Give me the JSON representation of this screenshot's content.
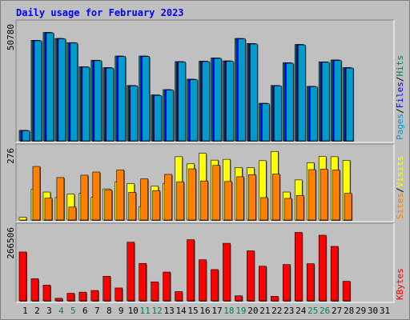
{
  "chart_data": {
    "type": "bar",
    "title": "Daily usage for February 2023",
    "colors": {
      "background": "#bfbfbf",
      "panel": "#c0c0c0",
      "pages": "#009cce",
      "files": "#0000ff",
      "hits": "#00805c",
      "visits": "#ffff00",
      "sites": "#ff8000",
      "kbytes": "#ff0000",
      "title": "#0000ff",
      "weekend_day": "#00805c"
    },
    "days": [
      "1",
      "2",
      "3",
      "4",
      "5",
      "6",
      "7",
      "8",
      "9",
      "10",
      "11",
      "12",
      "13",
      "14",
      "15",
      "16",
      "17",
      "18",
      "19",
      "20",
      "21",
      "22",
      "23",
      "24",
      "25",
      "26",
      "27",
      "28",
      "29",
      "30",
      "31"
    ],
    "weekend_days": [
      "4",
      "5",
      "11",
      "12",
      "18",
      "19",
      "25",
      "26"
    ],
    "panels": [
      {
        "id": "hits-files-pages",
        "max_label": "50780",
        "ylim": [
          0,
          50780
        ],
        "legend": [
          {
            "text": "Pages",
            "color": "#009cce"
          },
          {
            "text": "/",
            "color": "#000000"
          },
          {
            "text": "Files",
            "color": "#0000ff"
          },
          {
            "text": "/",
            "color": "#000000"
          },
          {
            "text": "Hits",
            "color": "#00805c"
          }
        ],
        "series": [
          {
            "name": "Hits",
            "color": "#00805c",
            "values": [
              4500,
              43400,
              46800,
              44200,
              42400,
              32000,
              34800,
              31600,
              36600,
              23900,
              36600,
              19800,
              22100,
              34200,
              26600,
              34400,
              35800,
              34500,
              44200,
              42000,
              16200,
              23900,
              33700,
              41600,
              23500,
              34100,
              34900,
              31600,
              0,
              0,
              0
            ]
          },
          {
            "name": "Files",
            "color": "#0000ff",
            "values": [
              4500,
              43400,
              46800,
              44200,
              42400,
              32000,
              34800,
              31600,
              36600,
              23900,
              36600,
              19800,
              22100,
              34200,
              26600,
              34400,
              35800,
              34500,
              44200,
              42000,
              16200,
              23900,
              33700,
              41600,
              23500,
              34100,
              34900,
              31600,
              0,
              0,
              0
            ]
          },
          {
            "name": "Pages",
            "color": "#009cce",
            "values": [
              4300,
              43200,
              46600,
              44000,
              42200,
              31800,
              34600,
              31400,
              36400,
              23700,
              36400,
              19600,
              21900,
              34000,
              26400,
              34200,
              35600,
              34300,
              44000,
              41800,
              16000,
              23700,
              33500,
              41400,
              23300,
              33900,
              34700,
              31400,
              0,
              0,
              0
            ]
          }
        ]
      },
      {
        "id": "visits-sites",
        "max_label": "276",
        "ylim": [
          0,
          276
        ],
        "legend": [
          {
            "text": "Sites",
            "color": "#ff8000"
          },
          {
            "text": "/",
            "color": "#000000"
          },
          {
            "text": "Visits",
            "color": "#ffff00"
          }
        ],
        "series": [
          {
            "name": "Visits",
            "color": "#ffff00",
            "values": [
              10,
              116,
              106,
              85,
              98,
              102,
              86,
              118,
              145,
              138,
              51,
              128,
              139,
              240,
              213,
              253,
              227,
              230,
              199,
              198,
              225,
              260,
              106,
              152,
              217,
              241,
              240,
              226,
              0,
              0,
              0
            ]
          },
          {
            "name": "Sites",
            "color": "#ff8000",
            "values": [
              0,
              203,
              83,
              161,
              49,
              170,
              182,
              114,
              190,
              105,
              156,
              111,
              173,
              145,
              194,
              148,
              207,
              146,
              164,
              172,
              85,
              174,
              82,
              93,
              191,
              193,
              190,
              101,
              0,
              0,
              0
            ]
          }
        ]
      },
      {
        "id": "kbytes",
        "max_label": "266506",
        "ylim": [
          0,
          266506
        ],
        "legend": [
          {
            "text": "KBytes",
            "color": "#ff0000"
          }
        ],
        "series": [
          {
            "name": "KBytes",
            "color": "#ff0000",
            "values": [
              175000,
              79000,
              56000,
              9000,
              27000,
              31000,
              37000,
              88000,
              46000,
              210000,
              134000,
              68000,
              103000,
              33000,
              219000,
              147000,
              112000,
              206000,
              18000,
              179000,
              124000,
              16000,
              130000,
              245000,
              133000,
              235000,
              195000,
              70000,
              0,
              0,
              0
            ]
          }
        ]
      }
    ]
  }
}
